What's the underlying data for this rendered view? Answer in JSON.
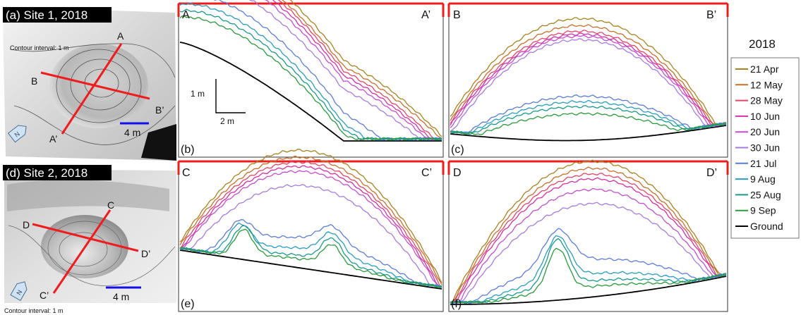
{
  "panels": {
    "a": {
      "title": "(a) Site 1, 2018",
      "contour_note": "Contour interval: 1 m",
      "labels": {
        "A": "A",
        "A_prime": "A’",
        "B": "B",
        "B_prime": "B’"
      },
      "scale": "4 m"
    },
    "d": {
      "title": "(d) Site 2, 2018",
      "contour_note": "Contour interval: 1 m",
      "labels": {
        "C": "C",
        "C_prime": "C’",
        "D": "D",
        "D_prime": "D’"
      },
      "scale": "4 m"
    },
    "b": {
      "tag": "(b)",
      "start": "A",
      "end": "A’",
      "vscale": "1 m",
      "hscale": "2 m"
    },
    "c": {
      "tag": "(c)",
      "start": "B",
      "end": "B’"
    },
    "e": {
      "tag": "(e)",
      "start": "C",
      "end": "C’"
    },
    "f": {
      "tag": "(f)",
      "start": "D",
      "end": "D’"
    }
  },
  "north": "N",
  "legend": {
    "title": "2018",
    "entries": [
      {
        "label": "21 Apr",
        "color": "#a8821e"
      },
      {
        "label": "12 May",
        "color": "#c8702a"
      },
      {
        "label": "28 May",
        "color": "#e2456a"
      },
      {
        "label": "10 Jun",
        "color": "#d42ea8"
      },
      {
        "label": "20 Jun",
        "color": "#c64ed2"
      },
      {
        "label": "30 Jun",
        "color": "#a67ce0"
      },
      {
        "label": "21 Jul",
        "color": "#5c7cdc"
      },
      {
        "label": "9 Aug",
        "color": "#2a9cc2"
      },
      {
        "label": "25 Aug",
        "color": "#1a9a8a"
      },
      {
        "label": "9 Sep",
        "color": "#2a9a3a"
      },
      {
        "label": "Ground",
        "color": "#000000"
      }
    ]
  },
  "colors": {
    "section_line": "#ee1c1c",
    "scale_bar": "#1010ee",
    "frame": "#333333"
  }
}
